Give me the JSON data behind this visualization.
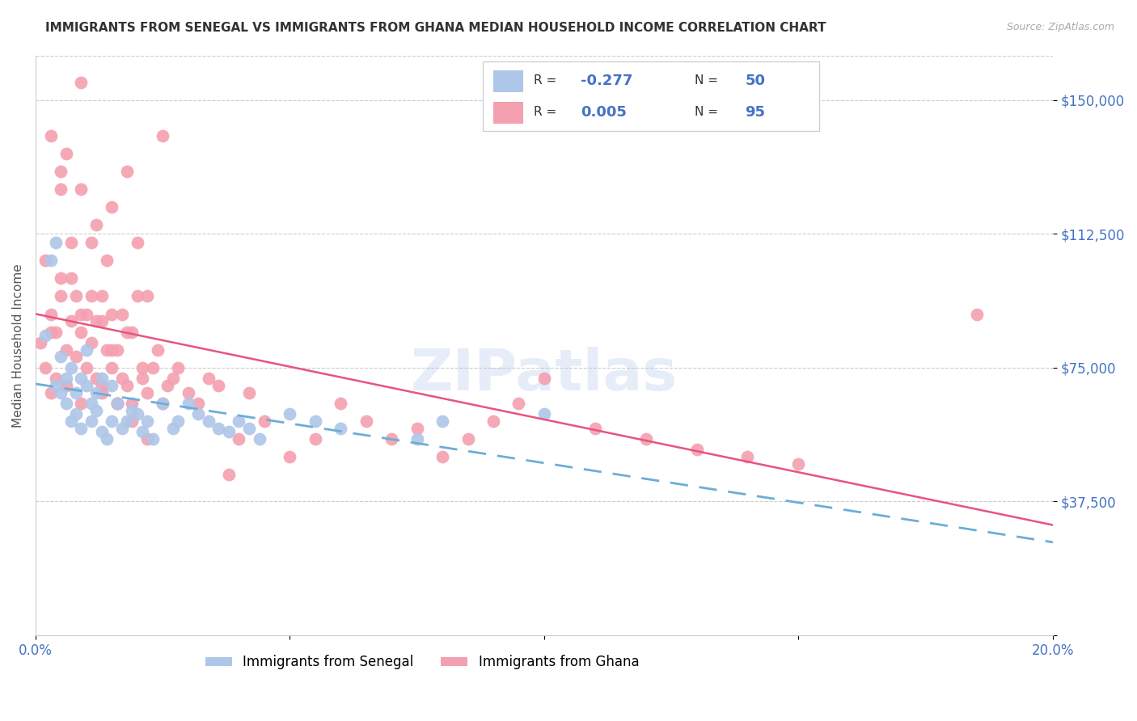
{
  "title": "IMMIGRANTS FROM SENEGAL VS IMMIGRANTS FROM GHANA MEDIAN HOUSEHOLD INCOME CORRELATION CHART",
  "source": "Source: ZipAtlas.com",
  "ylabel": "Median Household Income",
  "x_min": 0.0,
  "x_max": 0.2,
  "y_min": 0,
  "y_max": 162500,
  "yticks": [
    0,
    37500,
    75000,
    112500,
    150000
  ],
  "ytick_labels": [
    "",
    "$37,500",
    "$75,000",
    "$112,500",
    "$150,000"
  ],
  "xticks": [
    0.0,
    0.05,
    0.1,
    0.15,
    0.2
  ],
  "xtick_labels": [
    "0.0%",
    "",
    "",
    "",
    "20.0%"
  ],
  "watermark": "ZIPatlas",
  "color_senegal": "#aec6e8",
  "color_ghana": "#f4a0b0",
  "color_line_senegal": "#6baed6",
  "color_line_ghana": "#e85480",
  "color_axis": "#4472c4",
  "background": "#ffffff",
  "senegal_x": [
    0.002,
    0.003,
    0.004,
    0.004,
    0.005,
    0.005,
    0.006,
    0.006,
    0.007,
    0.007,
    0.008,
    0.008,
    0.009,
    0.009,
    0.01,
    0.01,
    0.011,
    0.011,
    0.012,
    0.012,
    0.013,
    0.013,
    0.014,
    0.015,
    0.015,
    0.016,
    0.017,
    0.018,
    0.019,
    0.02,
    0.021,
    0.022,
    0.023,
    0.025,
    0.027,
    0.028,
    0.03,
    0.032,
    0.034,
    0.036,
    0.038,
    0.04,
    0.042,
    0.044,
    0.05,
    0.055,
    0.06,
    0.075,
    0.08,
    0.1
  ],
  "senegal_y": [
    84000,
    105000,
    70000,
    110000,
    68000,
    78000,
    65000,
    72000,
    60000,
    75000,
    62000,
    68000,
    58000,
    72000,
    80000,
    70000,
    60000,
    65000,
    63000,
    68000,
    57000,
    72000,
    55000,
    60000,
    70000,
    65000,
    58000,
    60000,
    63000,
    62000,
    57000,
    60000,
    55000,
    65000,
    58000,
    60000,
    65000,
    62000,
    60000,
    58000,
    57000,
    60000,
    58000,
    55000,
    62000,
    60000,
    58000,
    55000,
    60000,
    62000
  ],
  "ghana_x": [
    0.001,
    0.002,
    0.002,
    0.003,
    0.003,
    0.004,
    0.004,
    0.005,
    0.005,
    0.005,
    0.006,
    0.006,
    0.007,
    0.007,
    0.008,
    0.008,
    0.009,
    0.009,
    0.01,
    0.01,
    0.011,
    0.011,
    0.012,
    0.012,
    0.013,
    0.013,
    0.014,
    0.014,
    0.015,
    0.015,
    0.016,
    0.016,
    0.017,
    0.018,
    0.018,
    0.019,
    0.02,
    0.02,
    0.021,
    0.022,
    0.023,
    0.024,
    0.025,
    0.026,
    0.027,
    0.028,
    0.03,
    0.032,
    0.034,
    0.036,
    0.038,
    0.04,
    0.042,
    0.045,
    0.05,
    0.055,
    0.06,
    0.065,
    0.07,
    0.075,
    0.08,
    0.085,
    0.09,
    0.095,
    0.1,
    0.11,
    0.12,
    0.13,
    0.14,
    0.15,
    0.003,
    0.006,
    0.009,
    0.012,
    0.015,
    0.018,
    0.022,
    0.025,
    0.003,
    0.005,
    0.007,
    0.009,
    0.011,
    0.013,
    0.015,
    0.017,
    0.019,
    0.021,
    0.016,
    0.009,
    0.013,
    0.016,
    0.019,
    0.022,
    0.185
  ],
  "ghana_y": [
    82000,
    75000,
    105000,
    68000,
    90000,
    72000,
    85000,
    125000,
    130000,
    95000,
    80000,
    70000,
    100000,
    88000,
    78000,
    95000,
    65000,
    85000,
    90000,
    75000,
    110000,
    82000,
    88000,
    72000,
    95000,
    68000,
    105000,
    80000,
    75000,
    90000,
    65000,
    80000,
    72000,
    70000,
    85000,
    65000,
    95000,
    110000,
    72000,
    68000,
    75000,
    80000,
    65000,
    70000,
    72000,
    75000,
    68000,
    65000,
    72000,
    70000,
    45000,
    55000,
    68000,
    60000,
    50000,
    55000,
    65000,
    60000,
    55000,
    58000,
    50000,
    55000,
    60000,
    65000,
    72000,
    58000,
    55000,
    52000,
    50000,
    48000,
    140000,
    135000,
    125000,
    115000,
    120000,
    130000,
    95000,
    140000,
    85000,
    100000,
    110000,
    90000,
    95000,
    88000,
    80000,
    90000,
    85000,
    75000,
    65000,
    155000,
    70000,
    65000,
    60000,
    55000,
    90000
  ]
}
